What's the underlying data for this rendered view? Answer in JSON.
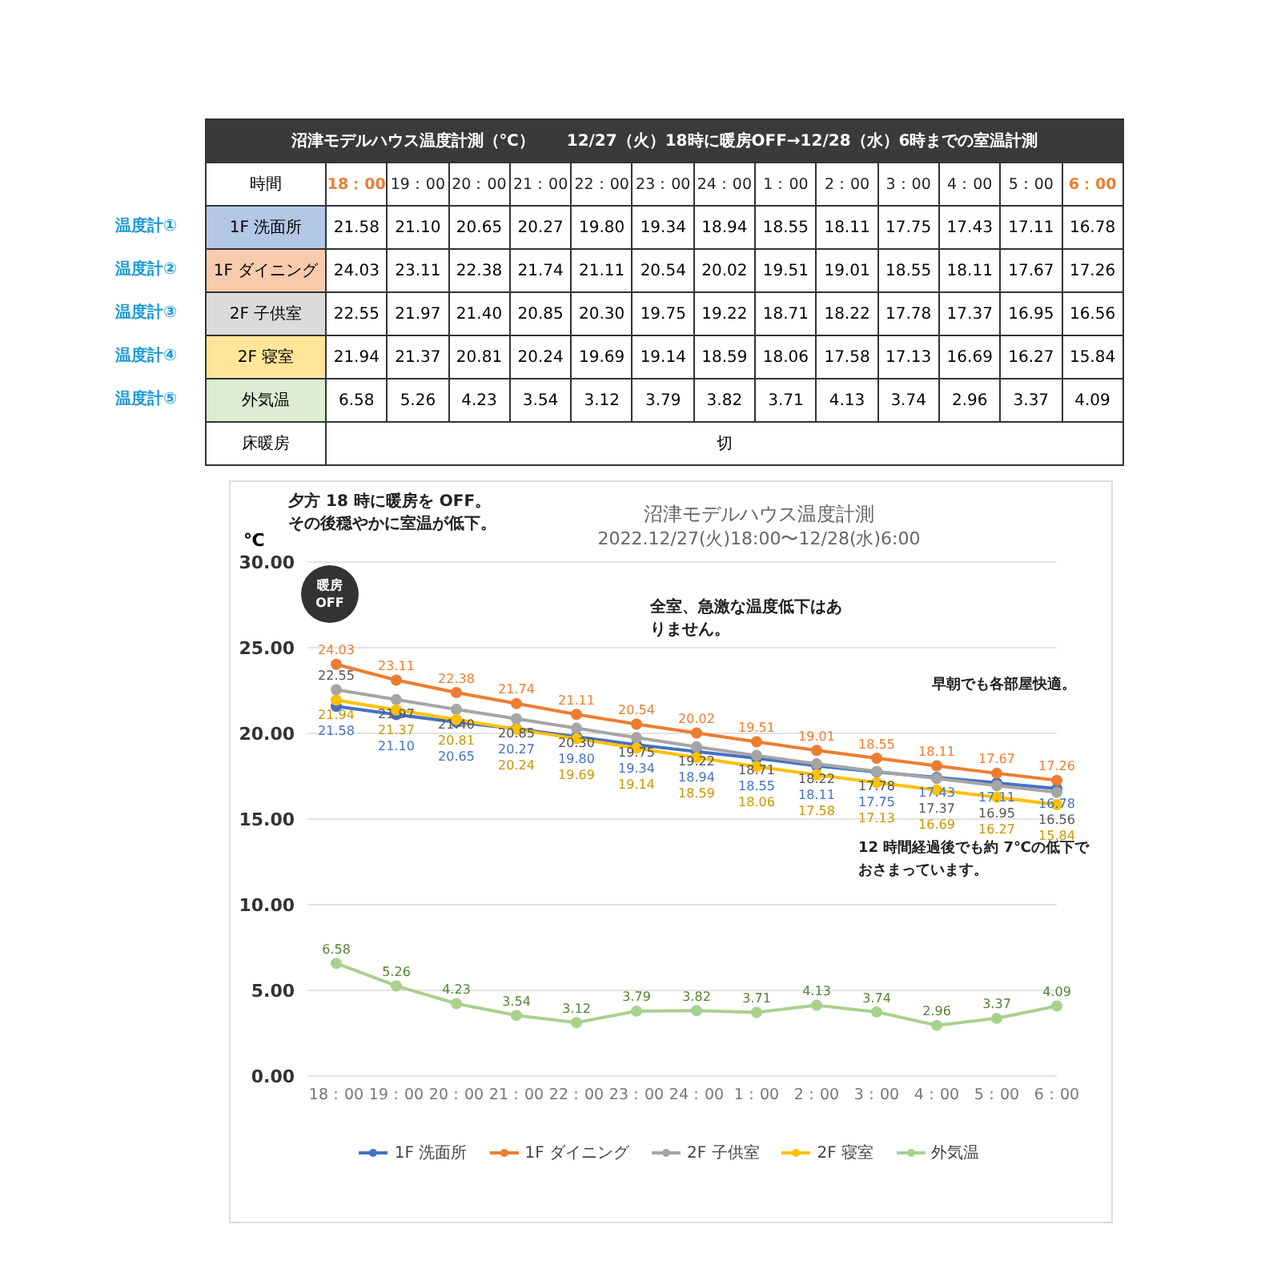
{
  "chart_data": {
    "type": "line",
    "title": "沼津モデルハウス温度計測",
    "subtitle": "2022.12/27(火)18:00〜12/28(水)6:00",
    "ylabel": "℃",
    "categories": [
      "18：00",
      "19：00",
      "20：00",
      "21：00",
      "22：00",
      "23：00",
      "24：00",
      "1：00",
      "2：00",
      "3：00",
      "4：00",
      "5：00",
      "6：00"
    ],
    "series": [
      {
        "name": "1F 洗面所",
        "color": "#4472c4",
        "values": [
          21.58,
          21.1,
          20.65,
          20.27,
          19.8,
          19.34,
          18.94,
          18.55,
          18.11,
          17.75,
          17.43,
          17.11,
          16.78
        ],
        "value_labels": [
          "21.58",
          "21.10",
          "20.65",
          "20.27",
          "19.80",
          "19.34",
          "18.94",
          "18.55",
          "18.11",
          "17.75",
          "17.43",
          "17.11",
          "16.78"
        ]
      },
      {
        "name": "1F ダイニング",
        "color": "#ed7d31",
        "values": [
          24.03,
          23.11,
          22.38,
          21.74,
          21.11,
          20.54,
          20.02,
          19.51,
          19.01,
          18.55,
          18.11,
          17.67,
          17.26
        ],
        "value_labels": [
          "24.03",
          "23.11",
          "22.38",
          "21.74",
          "21.11",
          "20.54",
          "20.02",
          "19.51",
          "19.01",
          "18.55",
          "18.11",
          "17.67",
          "17.26"
        ]
      },
      {
        "name": "2F 子供室",
        "color": "#a5a5a5",
        "values": [
          22.55,
          21.97,
          21.4,
          20.85,
          20.3,
          19.75,
          19.22,
          18.71,
          18.22,
          17.78,
          17.37,
          16.95,
          16.56
        ],
        "value_labels": [
          "22.55",
          "21.97",
          "21.40",
          "20.85",
          "20.30",
          "19.75",
          "19.22",
          "18.71",
          "18.22",
          "17.78",
          "17.37",
          "16.95",
          "16.56"
        ]
      },
      {
        "name": "2F 寝室",
        "color": "#ffc000",
        "values": [
          21.94,
          21.37,
          20.81,
          20.24,
          19.69,
          19.14,
          18.59,
          18.06,
          17.58,
          17.13,
          16.69,
          16.27,
          15.84
        ],
        "value_labels": [
          "21.94",
          "21.37",
          "20.81",
          "20.24",
          "19.69",
          "19.14",
          "18.59",
          "18.06",
          "17.58",
          "17.13",
          "16.69",
          "16.27",
          "15.84"
        ]
      },
      {
        "name": "外気温",
        "color": "#a9d18e",
        "values": [
          6.58,
          5.26,
          4.23,
          3.54,
          3.12,
          3.79,
          3.82,
          3.71,
          4.13,
          3.74,
          2.96,
          3.37,
          4.09
        ],
        "value_labels": [
          "6.58",
          "5.26",
          "4.23",
          "3.54",
          "3.12",
          "3.79",
          "3.82",
          "3.71",
          "4.13",
          "3.74",
          "2.96",
          "3.37",
          "4.09"
        ]
      }
    ],
    "ylim": [
      0,
      30
    ],
    "yticks": [
      {
        "value": 0,
        "label": "0.00"
      },
      {
        "value": 5,
        "label": "5.00"
      },
      {
        "value": 10,
        "label": "10.00"
      },
      {
        "value": 15,
        "label": "15.00"
      },
      {
        "value": 20,
        "label": "20.00"
      },
      {
        "value": 25,
        "label": "25.00"
      },
      {
        "value": 30,
        "label": "30.00"
      }
    ],
    "grid": "y",
    "legend": "bottom",
    "marker": "circle",
    "line_style": "solid",
    "annotations": [
      "沼津モデルハウス温度計測（℃）　　12/27（火）18時に暖房OFF→12/28（水）6時までの室温計測",
      "時間",
      "温度計①",
      "温度計②",
      "温度計③",
      "温度計④",
      "温度計⑤",
      "床暖房",
      "切",
      "夕方 18 時に暖房を OFF。その後穏やかに室温が低下。",
      "暖房\nOFF",
      "全室、急激な温度低下はありません。",
      "早朝でも各部屋快適。",
      "12 時間経過後でも約 7℃の低下でおさまっています。"
    ]
  }
}
